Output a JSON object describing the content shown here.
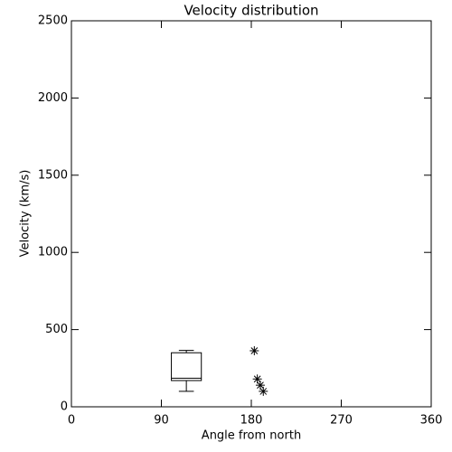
{
  "chart_data": {
    "type": "box",
    "title": "Velocity distribution",
    "xlabel": "Angle from north",
    "ylabel": "Velocity (km/s)",
    "xlim": [
      0,
      360
    ],
    "xticks": [
      0,
      90,
      180,
      270,
      360
    ],
    "ylim": [
      0,
      2500
    ],
    "yticks": [
      0,
      500,
      1000,
      1500,
      2000,
      2500
    ],
    "color": "#000000",
    "boxes": [
      {
        "x": 115,
        "whislo": 100,
        "q1": 170,
        "med": 185,
        "q3": 350,
        "whishi": 365
      }
    ],
    "points": {
      "x": [
        183,
        186,
        189,
        192
      ],
      "y": [
        363,
        180,
        140,
        100
      ]
    }
  }
}
